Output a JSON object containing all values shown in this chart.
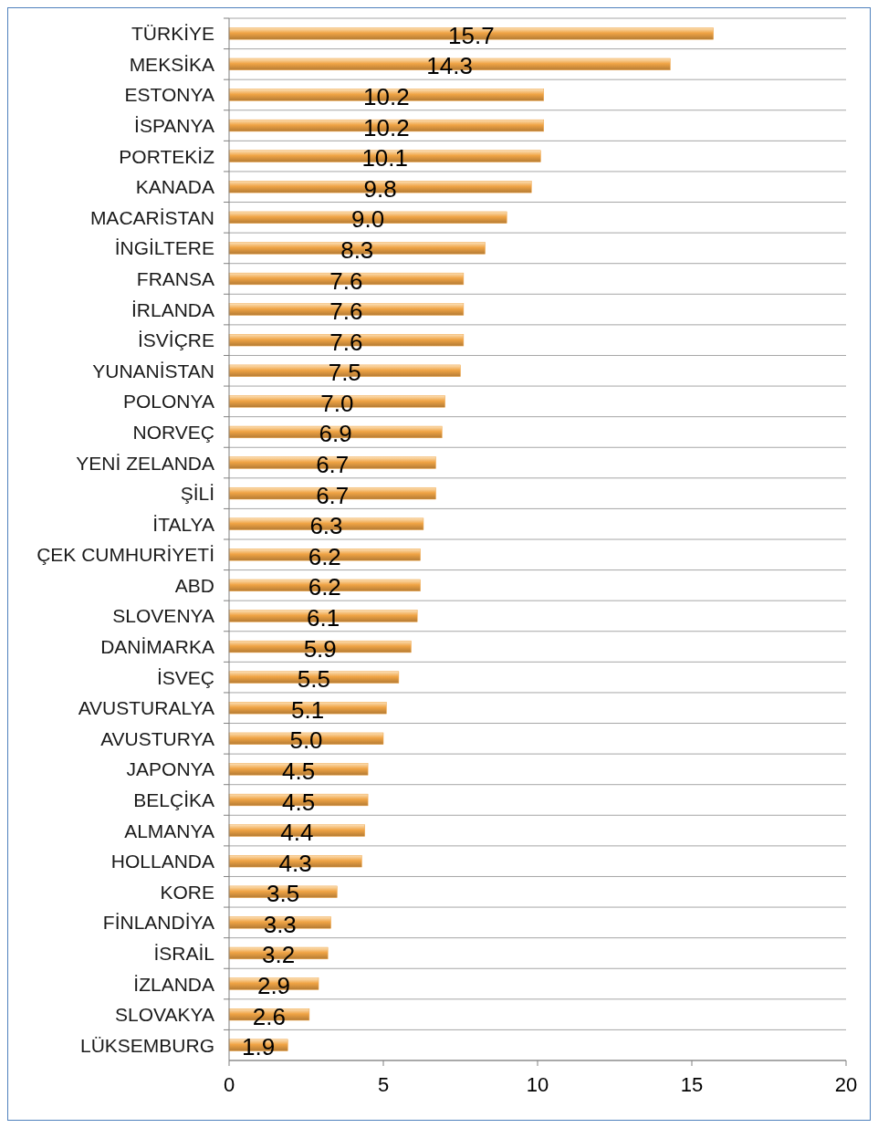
{
  "chart_data": {
    "type": "bar",
    "orientation": "horizontal",
    "categories": [
      "TÜRKİYE",
      "MEKSİKA",
      "ESTONYA",
      "İSPANYA",
      "PORTEKİZ",
      "KANADA",
      "MACARİSTAN",
      "İNGİLTERE",
      "FRANSA",
      "İRLANDA",
      "İSVİÇRE",
      "YUNANİSTAN",
      "POLONYA",
      "NORVEÇ",
      "YENİ ZELANDA",
      "ŞİLİ",
      "İTALYA",
      "ÇEK CUMHURİYETİ",
      "ABD",
      "SLOVENYA",
      "DANİMARKA",
      "İSVEÇ",
      "AVUSTURALYA",
      "AVUSTURYA",
      "JAPONYA",
      "BELÇİKA",
      "ALMANYA",
      "HOLLANDA",
      "KORE",
      "FİNLANDİYA",
      "İSRAİL",
      "İZLANDA",
      "SLOVAKYA",
      "LÜKSEMBURG"
    ],
    "values": [
      15.7,
      14.3,
      10.2,
      10.2,
      10.1,
      9.8,
      9.0,
      8.3,
      7.6,
      7.6,
      7.6,
      7.5,
      7.0,
      6.9,
      6.7,
      6.7,
      6.3,
      6.2,
      6.2,
      6.1,
      5.9,
      5.5,
      5.1,
      5.0,
      4.5,
      4.5,
      4.4,
      4.3,
      3.5,
      3.3,
      3.2,
      2.9,
      2.6,
      1.9
    ],
    "value_labels": [
      "15.7",
      "14.3",
      "10.2",
      "10.2",
      "10.1",
      "9.8",
      "9.0",
      "8.3",
      "7.6",
      "7.6",
      "7.6",
      "7.5",
      "7.0",
      "6.9",
      "6.7",
      "6.7",
      "6.3",
      "6.2",
      "6.2",
      "6.1",
      "5.9",
      "5.5",
      "5.1",
      "5.0",
      "4.5",
      "4.5",
      "4.4",
      "4.3",
      "3.5",
      "3.3",
      "3.2",
      "2.9",
      "2.6",
      "1.9"
    ],
    "color": "#f0a445",
    "xlim": [
      0,
      20
    ],
    "xticks": [
      0,
      5,
      10,
      15,
      20
    ],
    "grid": "y"
  }
}
